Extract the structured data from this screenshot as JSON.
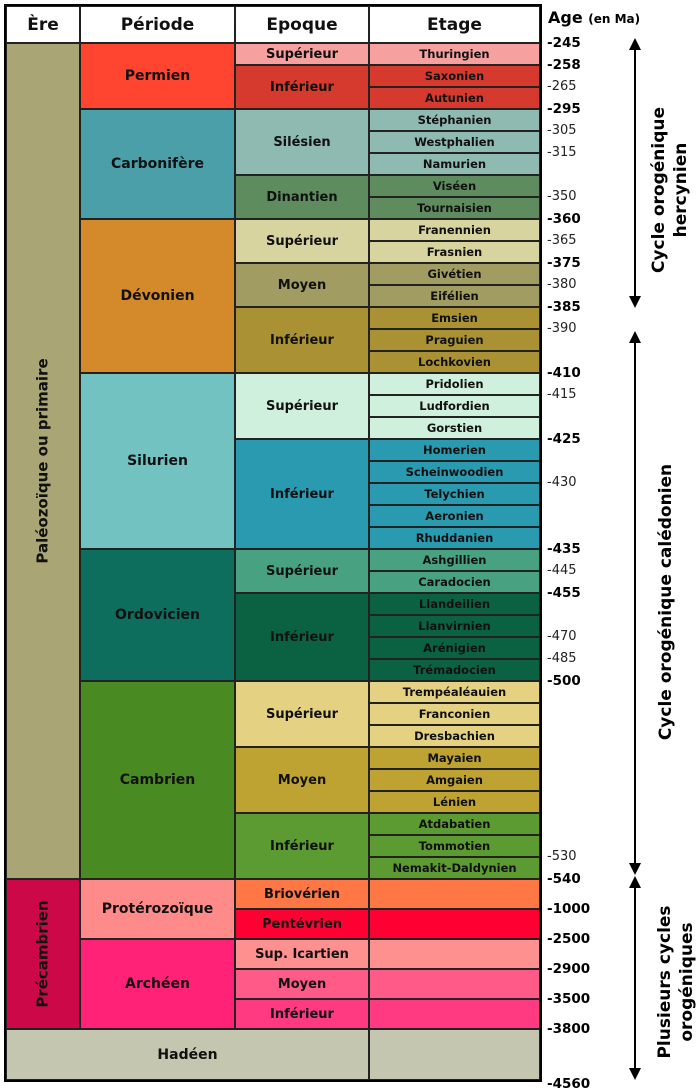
{
  "headers": {
    "era": "Ère",
    "period": "Période",
    "epoch": "Epoque",
    "stage": "Etage",
    "age": "Age",
    "age_unit": "(en Ma)"
  },
  "eras": [
    {
      "name": "Paléozoïque ou primaire",
      "color": "#aaa574",
      "periods": [
        {
          "name": "Permien",
          "color": "#ff4530",
          "epochs": [
            {
              "name": "Supérieur",
              "color": "#f6a0a0",
              "stages": [
                {
                  "name": "Thuringien",
                  "age": "-245",
                  "major": true
                }
              ]
            },
            {
              "name": "Inférieur",
              "color": "#d63a2e",
              "stages": [
                {
                  "name": "Saxonien",
                  "age": "-258",
                  "major": true
                },
                {
                  "name": "Autunien",
                  "age": "-265",
                  "major": false
                }
              ]
            }
          ]
        },
        {
          "name": "Carbonifère",
          "color": "#4a9fa8",
          "epochs": [
            {
              "name": "Silésien",
              "color": "#8fbab2",
              "stages": [
                {
                  "name": "Stéphanien",
                  "age": "-295",
                  "major": true
                },
                {
                  "name": "Westphalien",
                  "age": "-305",
                  "major": false
                },
                {
                  "name": "Namurien",
                  "age": "-315",
                  "major": false
                }
              ]
            },
            {
              "name": "Dinantien",
              "color": "#5e8c5e",
              "stages": [
                {
                  "name": "Viséen",
                  "age": "",
                  "major": false
                },
                {
                  "name": "Tournaisien",
                  "age": "-350",
                  "major": false
                }
              ]
            }
          ]
        },
        {
          "name": "Dévonien",
          "color": "#d4892a",
          "epochs": [
            {
              "name": "Supérieur",
              "color": "#d8d4a0",
              "stages": [
                {
                  "name": "Franennien",
                  "age": "-360",
                  "major": true
                },
                {
                  "name": "Frasnien",
                  "age": "-365",
                  "major": false
                }
              ]
            },
            {
              "name": "Moyen",
              "color": "#a09c62",
              "stages": [
                {
                  "name": "Givétien",
                  "age": "-375",
                  "major": true
                },
                {
                  "name": "Eifélien",
                  "age": "-380",
                  "major": false
                }
              ]
            },
            {
              "name": "Inférieur",
              "color": "#aa9234",
              "stages": [
                {
                  "name": "Emsien",
                  "age": "-385",
                  "major": true
                },
                {
                  "name": "Praguien",
                  "age": "-390",
                  "major": false
                },
                {
                  "name": "Lochkovien",
                  "age": "",
                  "major": false
                }
              ]
            }
          ]
        },
        {
          "name": "Silurien",
          "color": "#72c2c2",
          "epochs": [
            {
              "name": "Supérieur",
              "color": "#cff0dc",
              "stages": [
                {
                  "name": "Pridolien",
                  "age": "-410",
                  "major": true
                },
                {
                  "name": "Ludfordien",
                  "age": "-415",
                  "major": false
                },
                {
                  "name": "Gorstien",
                  "age": "",
                  "major": false
                }
              ]
            },
            {
              "name": "Inférieur",
              "color": "#2a9ab0",
              "stages": [
                {
                  "name": "Homerien",
                  "age": "-425",
                  "major": true
                },
                {
                  "name": "Scheinwoodien",
                  "age": "",
                  "major": false
                },
                {
                  "name": "Telychien",
                  "age": "-430",
                  "major": false
                },
                {
                  "name": "Aeronien",
                  "age": "",
                  "major": false
                },
                {
                  "name": "Rhuddanien",
                  "age": "",
                  "major": false
                }
              ]
            }
          ]
        },
        {
          "name": "Ordovicien",
          "color": "#0e6e5e",
          "epochs": [
            {
              "name": "Supérieur",
              "color": "#48a282",
              "stages": [
                {
                  "name": "Ashgillien",
                  "age": "-435",
                  "major": true
                },
                {
                  "name": "Caradocien",
                  "age": "-445",
                  "major": false
                }
              ]
            },
            {
              "name": "Inférieur",
              "color": "#0a6242",
              "stages": [
                {
                  "name": "Llandeilien",
                  "age": "-455",
                  "major": true
                },
                {
                  "name": "Llanvirnien",
                  "age": "",
                  "major": false
                },
                {
                  "name": "Arénigien",
                  "age": "-470",
                  "major": false
                },
                {
                  "name": "Trémadocien",
                  "age": "-485",
                  "major": false
                }
              ]
            }
          ]
        },
        {
          "name": "Cambrien",
          "color": "#4a8a22",
          "epochs": [
            {
              "name": "Supérieur",
              "color": "#e4d282",
              "stages": [
                {
                  "name": "Trempéaléauien",
                  "age": "-500",
                  "major": true
                },
                {
                  "name": "Franconien",
                  "age": "",
                  "major": false
                },
                {
                  "name": "Dresbachien",
                  "age": "",
                  "major": false
                }
              ]
            },
            {
              "name": "Moyen",
              "color": "#bea232",
              "stages": [
                {
                  "name": "Mayaien",
                  "age": "",
                  "major": false
                },
                {
                  "name": "Amgaien",
                  "age": "",
                  "major": false
                },
                {
                  "name": "Lénien",
                  "age": "",
                  "major": false
                }
              ]
            },
            {
              "name": "Inférieur",
              "color": "#5c9a32",
              "stages": [
                {
                  "name": "Atdabatien",
                  "age": "",
                  "major": false
                },
                {
                  "name": "Tommotien",
                  "age": "",
                  "major": false
                },
                {
                  "name": "Nemakit-Daldynien",
                  "age": "-530",
                  "major": false
                }
              ]
            }
          ]
        }
      ]
    },
    {
      "name": "Précambrien",
      "color": "#cc0848",
      "periods": [
        {
          "name": "Protérozoïque",
          "color": "#ff8a8a",
          "epochs": [
            {
              "name": "Briovérien",
              "color": "#ff7744",
              "stages": [
                {
                  "name": "",
                  "age": "-540",
                  "major": true
                }
              ]
            },
            {
              "name": "Pentévrien",
              "color": "#ff0033",
              "stages": [
                {
                  "name": "",
                  "age": "-1000",
                  "major": true
                }
              ]
            }
          ]
        },
        {
          "name": "Archéen",
          "color": "#ff2277",
          "epochs": [
            {
              "name": "Sup. Icartien",
              "color": "#ff9090",
              "stages": [
                {
                  "name": "",
                  "age": "-2500",
                  "major": true
                }
              ]
            },
            {
              "name": "Moyen",
              "color": "#ff5a88",
              "stages": [
                {
                  "name": "",
                  "age": "-2900",
                  "major": true
                }
              ]
            },
            {
              "name": "Inférieur",
              "color": "#ff3a80",
              "stages": [
                {
                  "name": "",
                  "age": "-3500",
                  "major": true
                }
              ]
            }
          ]
        }
      ]
    }
  ],
  "hadean": {
    "name": "Hadéen",
    "color": "#c4c6b0",
    "age": "-3800",
    "bottom_age": "-4560"
  },
  "cycles": [
    {
      "lines": [
        "Cycle orogénique",
        "hercynien"
      ]
    },
    {
      "lines": [
        "Cycle orogénique calédonien"
      ]
    },
    {
      "lines": [
        "Plusieurs cycles",
        "orogéniques"
      ]
    }
  ]
}
